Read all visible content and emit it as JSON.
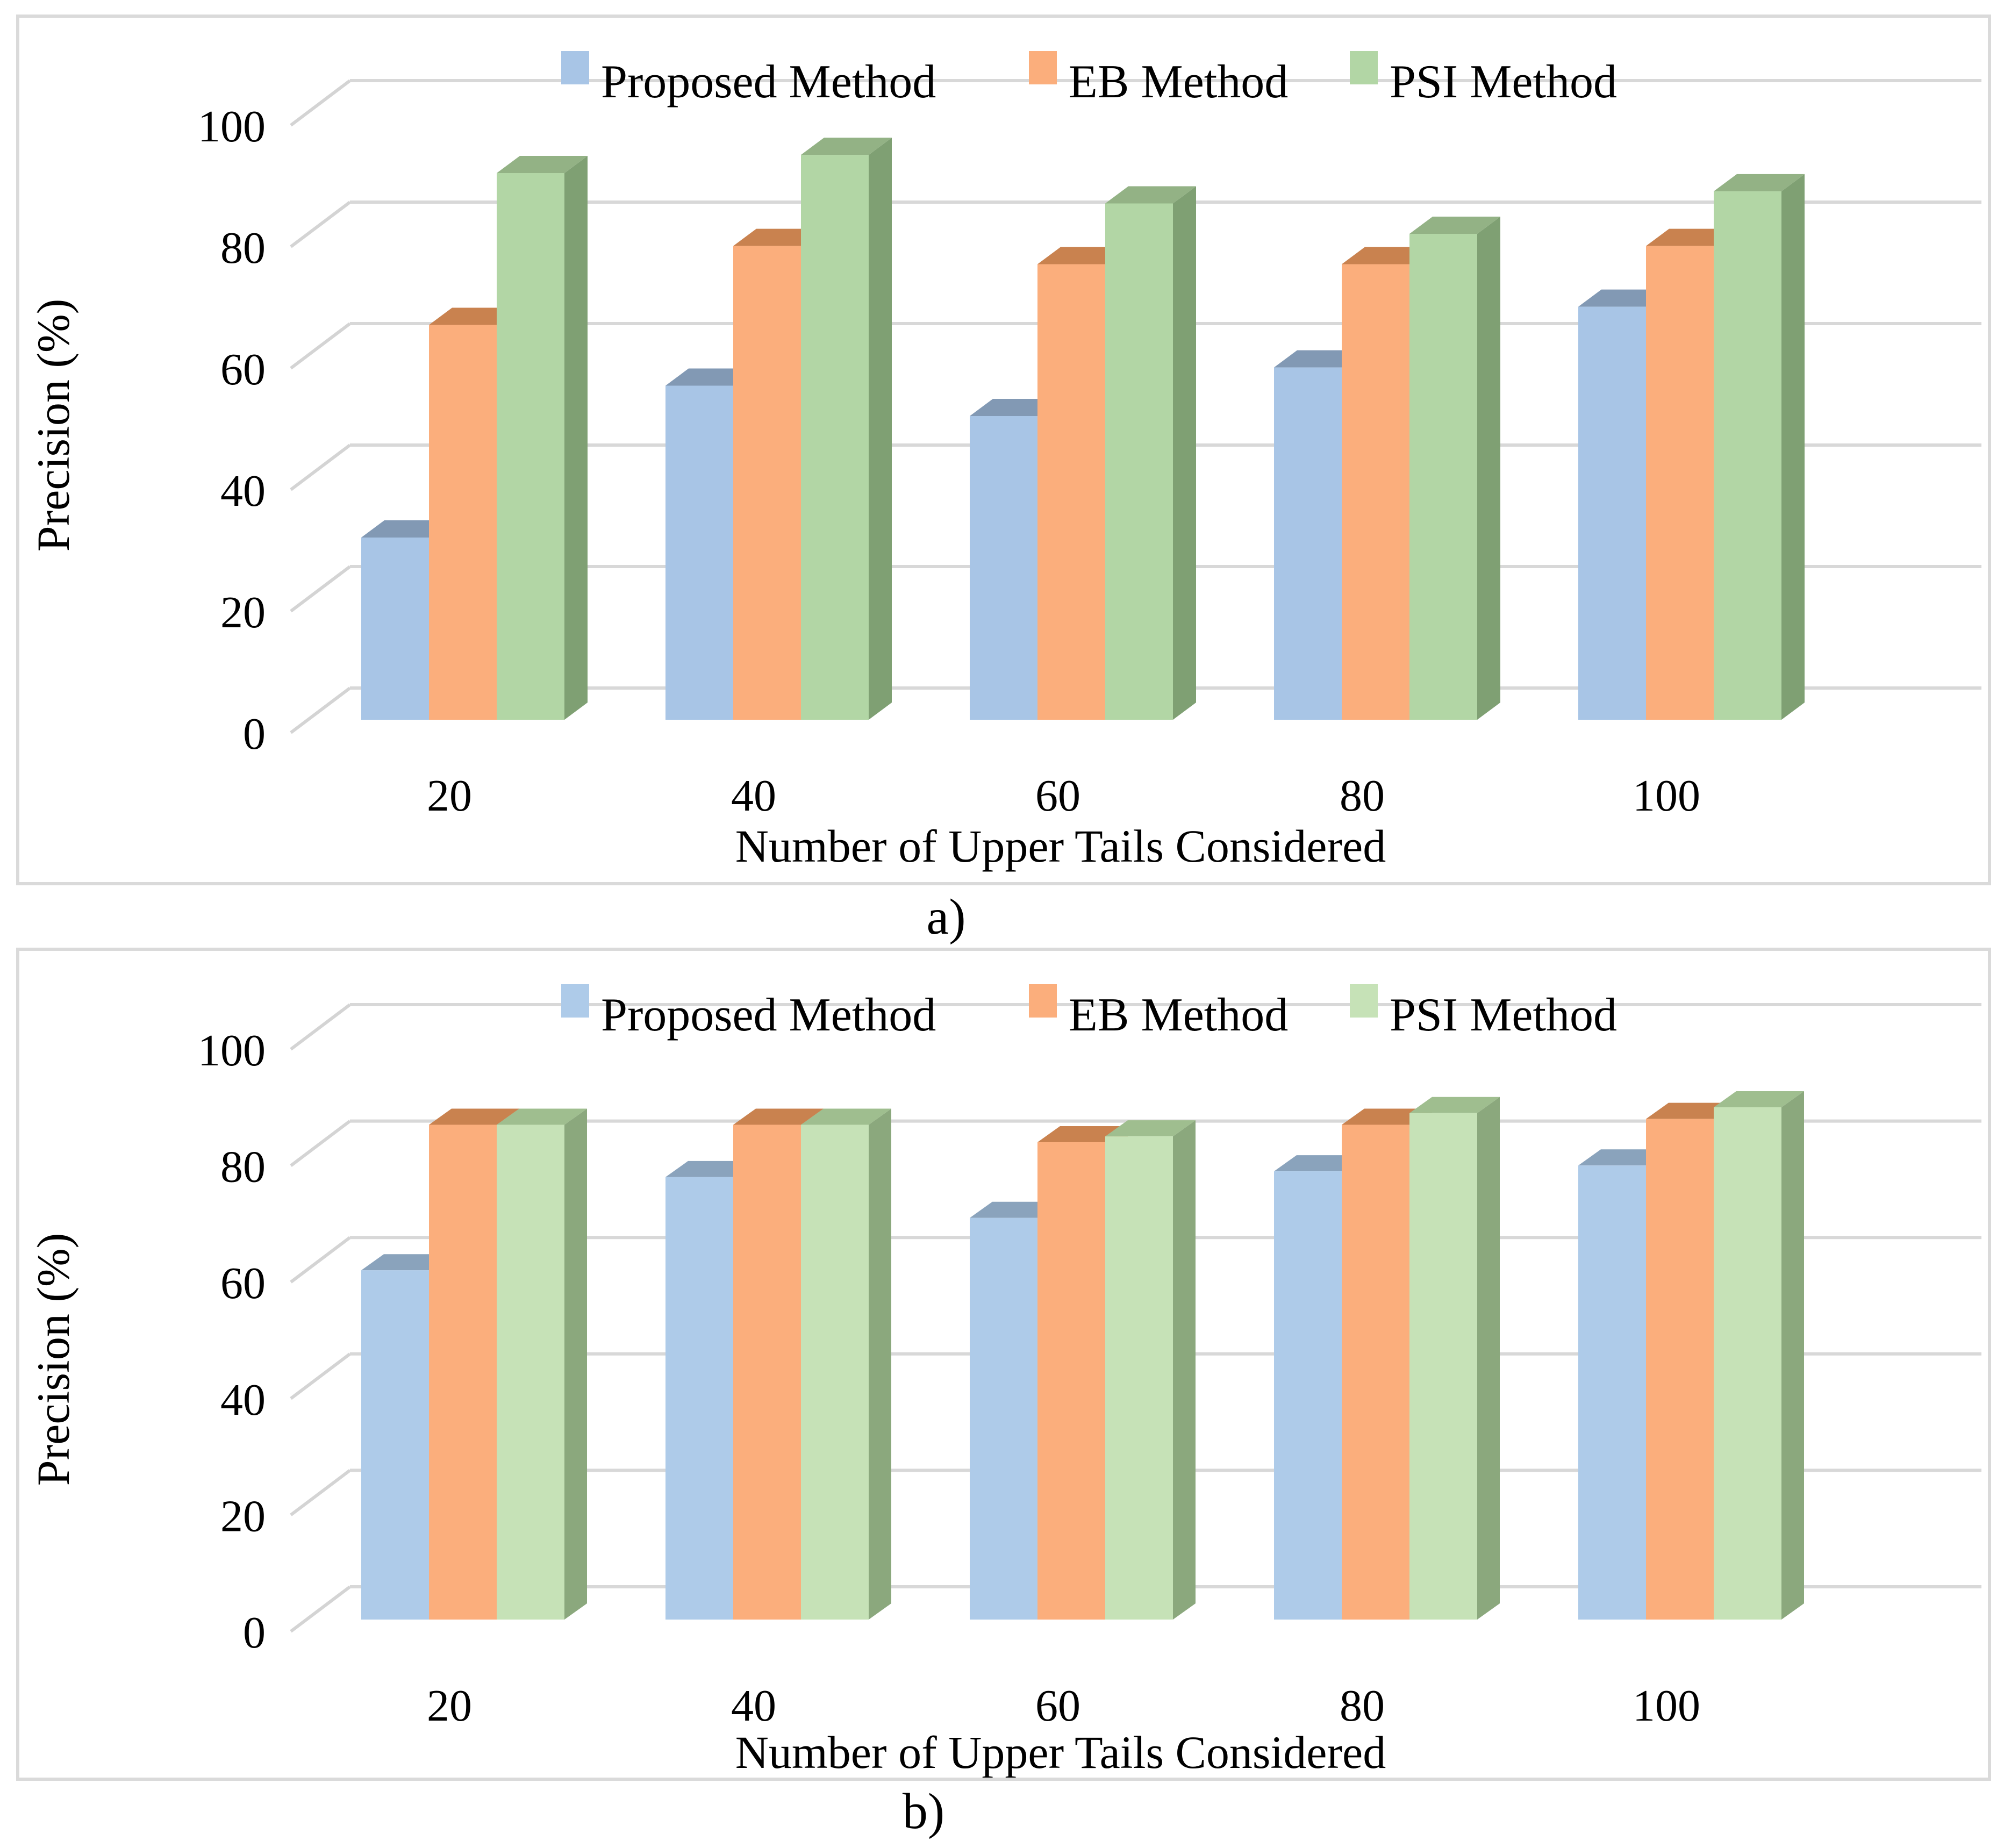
{
  "page": {
    "background": "#ffffff",
    "panel_labels": [
      "a)",
      "b)"
    ]
  },
  "colors": {
    "gridline": "#D8D8D8",
    "connector": "#D4D4D4",
    "panel_border": "#DADADA",
    "text": "#000000"
  },
  "chart_data": [
    {
      "type": "bar",
      "variant": "3d-clustered-column",
      "panel_label": "a)",
      "title": "",
      "xlabel": "Number of Upper Tails Considered",
      "ylabel": "Precision (%)",
      "categories": [
        "20",
        "40",
        "60",
        "80",
        "100"
      ],
      "yticks": [
        0,
        20,
        40,
        60,
        80,
        100
      ],
      "ylim": [
        0,
        100
      ],
      "grid": true,
      "legend_position": "top",
      "series": [
        {
          "name": "Proposed Method",
          "values": [
            30,
            55,
            50,
            58,
            68
          ],
          "color": "#A8C5E6",
          "top_color": "#8299B4",
          "side_color": "#7A8FA9"
        },
        {
          "name": "EB Method",
          "values": [
            65,
            78,
            75,
            75,
            78
          ],
          "color": "#FBAE7C",
          "top_color": "#C9824F",
          "side_color": "#BD7A4A"
        },
        {
          "name": "PSI Method",
          "values": [
            90,
            93,
            85,
            80,
            87
          ],
          "color": "#B2D6A5",
          "top_color": "#93B285",
          "side_color": "#7FA073"
        }
      ]
    },
    {
      "type": "bar",
      "variant": "3d-clustered-column",
      "panel_label": "b)",
      "title": "",
      "xlabel": "Number of Upper Tails Considered",
      "ylabel": "Precision (%)",
      "categories": [
        "20",
        "40",
        "60",
        "80",
        "100"
      ],
      "yticks": [
        0,
        20,
        40,
        60,
        80,
        100
      ],
      "ylim": [
        0,
        100
      ],
      "grid": true,
      "legend_position": "top",
      "series": [
        {
          "name": "Proposed Method",
          "values": [
            60,
            76,
            69,
            77,
            78
          ],
          "color": "#AECBE9",
          "top_color": "#8AA3BC",
          "side_color": "#7D94AB"
        },
        {
          "name": "EB Method",
          "values": [
            85,
            85,
            82,
            85,
            86
          ],
          "color": "#FBAE7C",
          "top_color": "#C9824F",
          "side_color": "#BD7A4A"
        },
        {
          "name": "PSI Method",
          "values": [
            85,
            85,
            83,
            87,
            88
          ],
          "color": "#C6E2B7",
          "top_color": "#9FBE8F",
          "side_color": "#8BA87D"
        }
      ]
    }
  ]
}
